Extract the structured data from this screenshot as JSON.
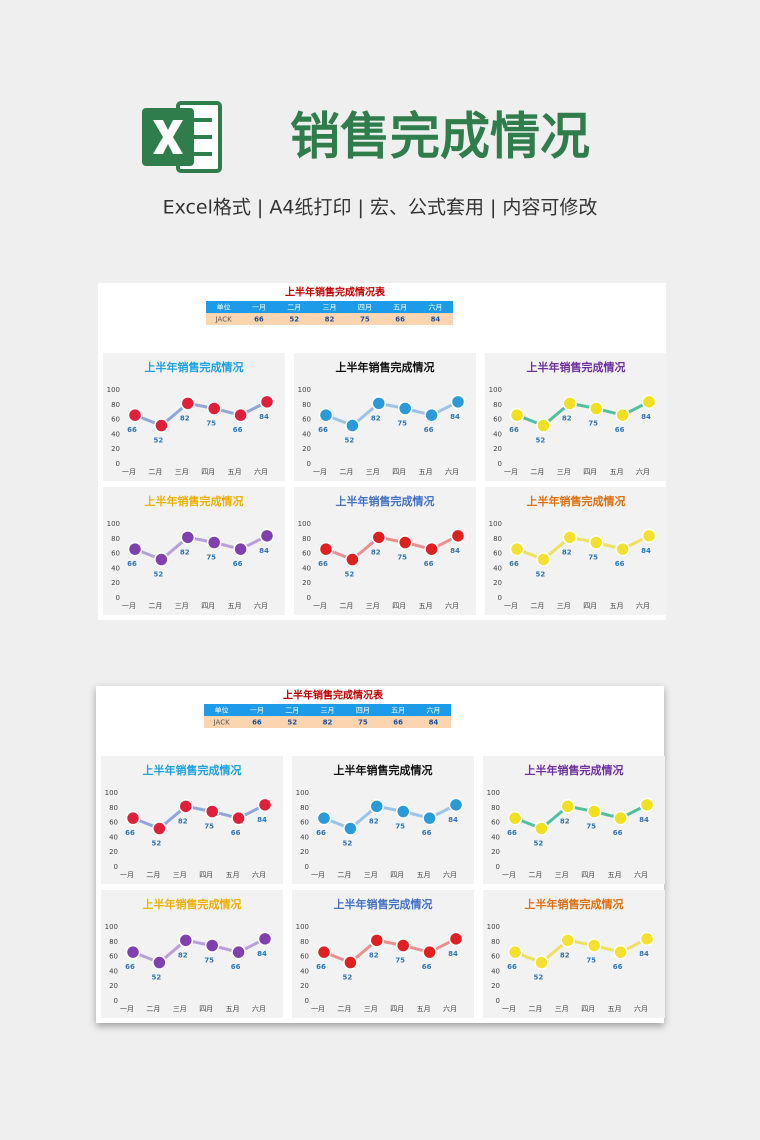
{
  "header": {
    "title": "销售完成情况",
    "subtitle": "Excel格式 |  A4纸打印 | 宏、公式套用 | 内容可修改"
  },
  "sheet": {
    "title": "上半年销售完成情况表",
    "table": {
      "header": [
        "单位",
        "一月",
        "二月",
        "三月",
        "四月",
        "五月",
        "六月"
      ],
      "rows": [
        [
          "JACK",
          66,
          52,
          82,
          75,
          66,
          84
        ]
      ]
    },
    "charts": [
      {
        "type": "line",
        "title": "上半年销售完成情况",
        "title_color": "#1ca3e3",
        "marker_color": "#e0203a",
        "line_color": "#8fa6d8",
        "categories": [
          "一月",
          "二月",
          "三月",
          "四月",
          "五月",
          "六月"
        ],
        "values": [
          66,
          52,
          82,
          75,
          66,
          84
        ],
        "ylim": [
          0,
          100
        ],
        "yticks": [
          0,
          20,
          40,
          60,
          80,
          100
        ]
      },
      {
        "type": "line",
        "title": "上半年销售完成情况",
        "title_color": "#111111",
        "marker_color": "#2a9ad8",
        "line_color": "#9cc3e6",
        "categories": [
          "一月",
          "二月",
          "三月",
          "四月",
          "五月",
          "六月"
        ],
        "values": [
          66,
          52,
          82,
          75,
          66,
          84
        ],
        "ylim": [
          0,
          100
        ],
        "yticks": [
          0,
          20,
          40,
          60,
          80,
          100
        ]
      },
      {
        "type": "line",
        "title": "上半年销售完成情况",
        "title_color": "#7030a0",
        "marker_color": "#f0e020",
        "line_color": "#50c0a0",
        "categories": [
          "一月",
          "二月",
          "三月",
          "四月",
          "五月",
          "六月"
        ],
        "values": [
          66,
          52,
          82,
          75,
          66,
          84
        ],
        "ylim": [
          0,
          100
        ],
        "yticks": [
          0,
          20,
          40,
          60,
          80,
          100
        ]
      },
      {
        "type": "line",
        "title": "上半年销售完成情况",
        "title_color": "#f0b000",
        "marker_color": "#8040b0",
        "line_color": "#b8a0d8",
        "categories": [
          "一月",
          "二月",
          "三月",
          "四月",
          "五月",
          "六月"
        ],
        "values": [
          66,
          52,
          82,
          75,
          66,
          84
        ],
        "ylim": [
          0,
          100
        ],
        "yticks": [
          0,
          20,
          40,
          60,
          80,
          100
        ]
      },
      {
        "type": "line",
        "title": "上半年销售完成情况",
        "title_color": "#4472c4",
        "marker_color": "#e02020",
        "line_color": "#e89090",
        "categories": [
          "一月",
          "二月",
          "三月",
          "四月",
          "五月",
          "六月"
        ],
        "values": [
          66,
          52,
          82,
          75,
          66,
          84
        ],
        "ylim": [
          0,
          100
        ],
        "yticks": [
          0,
          20,
          40,
          60,
          80,
          100
        ]
      },
      {
        "type": "line",
        "title": "上半年销售完成情况",
        "title_color": "#e07010",
        "marker_color": "#f5e030",
        "line_color": "#f0e060",
        "categories": [
          "一月",
          "二月",
          "三月",
          "四月",
          "五月",
          "六月"
        ],
        "values": [
          66,
          52,
          82,
          75,
          66,
          84
        ],
        "ylim": [
          0,
          100
        ],
        "yticks": [
          0,
          20,
          40,
          60,
          80,
          100
        ]
      }
    ]
  }
}
